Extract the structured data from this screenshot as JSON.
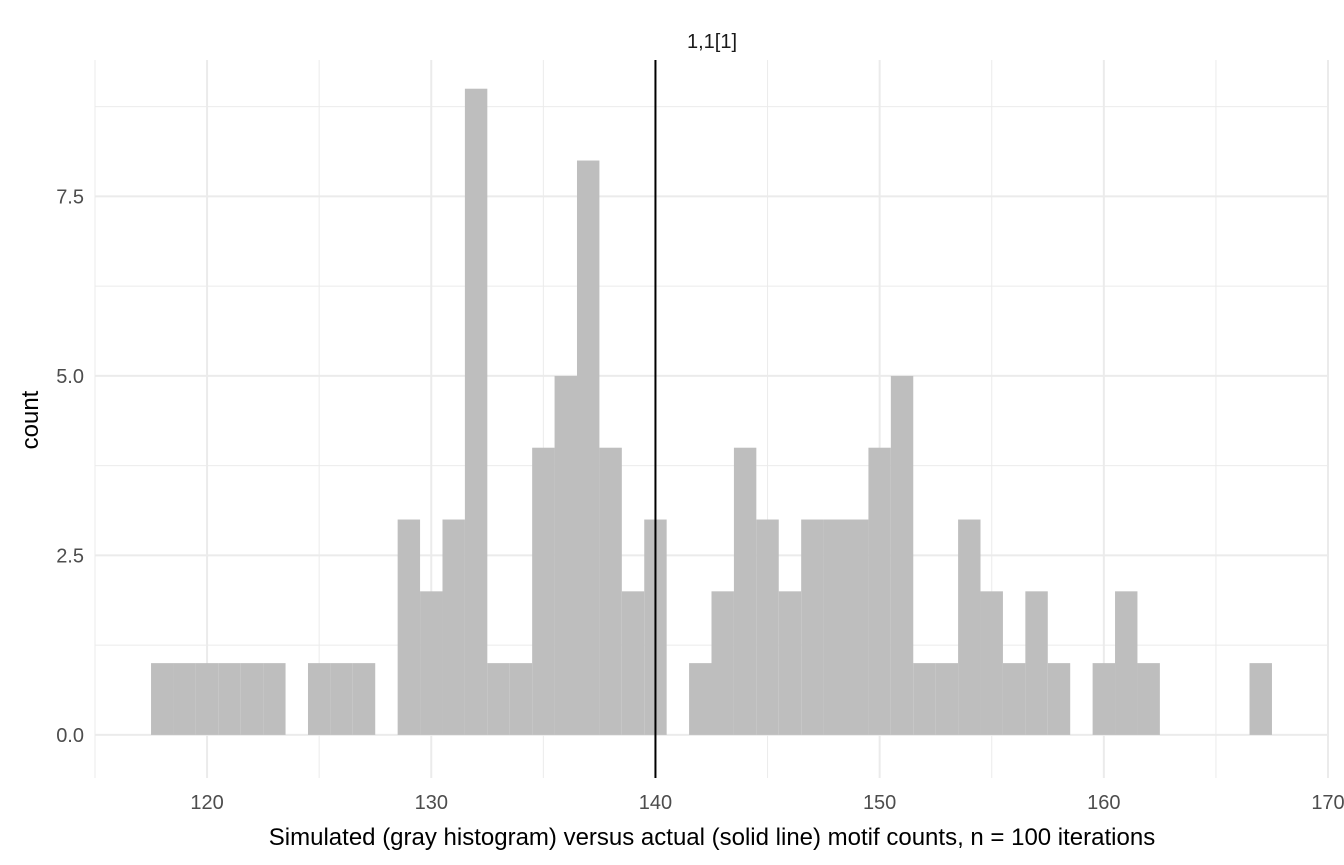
{
  "chart_data": {
    "type": "bar",
    "subtype": "histogram",
    "facet_label": "1,1[1]",
    "xlabel": "Simulated (gray histogram) versus actual (solid line) motif counts, n = 100 iterations",
    "ylabel": "count",
    "xlim": [
      115,
      170
    ],
    "ylim": [
      -0.6,
      9.4
    ],
    "x_ticks": [
      120,
      130,
      140,
      150,
      160,
      170
    ],
    "x_tick_labels": [
      "120",
      "130",
      "140",
      "150",
      "160",
      "170"
    ],
    "y_ticks": [
      0,
      2.5,
      5,
      7.5
    ],
    "y_tick_labels": [
      "0.0",
      "2.5",
      "5.0",
      "7.5"
    ],
    "bin_width": 1,
    "x": [
      118,
      119,
      120,
      121,
      122,
      123,
      125,
      126,
      127,
      129,
      130,
      131,
      132,
      133,
      134,
      135,
      136,
      137,
      138,
      139,
      140,
      142,
      143,
      144,
      145,
      146,
      147,
      148,
      149,
      150,
      151,
      152,
      153,
      154,
      155,
      156,
      157,
      158,
      160,
      161,
      162,
      167
    ],
    "values": [
      1,
      1,
      1,
      1,
      1,
      1,
      1,
      1,
      1,
      3,
      2,
      3,
      9,
      1,
      1,
      4,
      5,
      8,
      4,
      2,
      3,
      1,
      2,
      4,
      3,
      2,
      3,
      3,
      3,
      4,
      5,
      1,
      1,
      3,
      2,
      1,
      2,
      1,
      1,
      2,
      1,
      1
    ],
    "reference_line": {
      "x": 140,
      "label": "actual"
    },
    "grid": true,
    "colors": {
      "bars": "#bebebe",
      "line": "#000000",
      "grid": "#ebebeb"
    }
  }
}
